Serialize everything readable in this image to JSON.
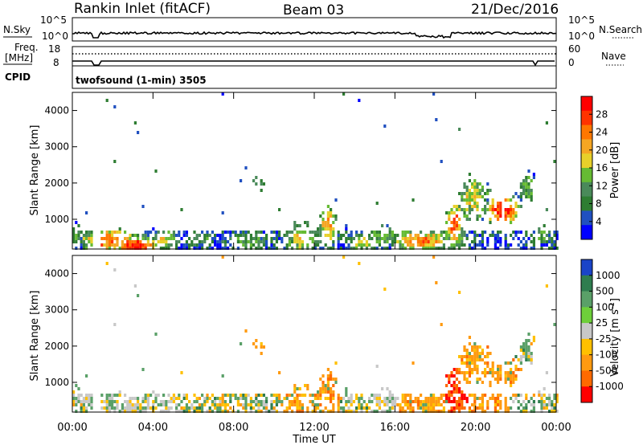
{
  "header": {
    "station": "Rankin Inlet (fitACF)",
    "beam": "Beam 03",
    "date": "21/Dec/2016"
  },
  "top_panels": {
    "nsky_label": "N.Sky",
    "nsky_ticks": [
      "10^5",
      "10^0"
    ],
    "nsearch_label": "N.Search",
    "freq_label_1": "Freq.",
    "freq_label_2": "[MHz]",
    "freq_ticks": [
      "18",
      "8"
    ],
    "nave_ticks": [
      "60",
      "0"
    ],
    "nave_label": "Nave",
    "cpid_label": "CPID",
    "cpid_text": "twofsound (1-min) 3505"
  },
  "colors": {
    "power_scale": [
      "#0000ff",
      "#2050c0",
      "#2e7d32",
      "#4a8a5a",
      "#66bb33",
      "#e8d02a",
      "#f5a623",
      "#ff7700",
      "#ff3300",
      "#ff0000"
    ],
    "velocity_scale": [
      "#1a44c8",
      "#2f7d4f",
      "#5aa068",
      "#6ecf3a",
      "#c8c8c8",
      "#ffc000",
      "#ff9a10",
      "#ff6a00",
      "#ff0000"
    ]
  },
  "chart_data": [
    {
      "type": "heatmap",
      "name": "power",
      "xlabel": "Time UT",
      "ylabel": "Slant Range [km]",
      "x_ticks": [
        "00:00",
        "04:00",
        "08:00",
        "12:00",
        "16:00",
        "20:00",
        "00:00"
      ],
      "y_ticks": [
        "1000",
        "2000",
        "3000",
        "4000"
      ],
      "ylim": [
        180,
        4500
      ],
      "colorbar_label": "Power [dB]",
      "colorbar_ticks": [
        "4",
        "8",
        "12",
        "16",
        "20",
        "24",
        "28"
      ]
    },
    {
      "type": "heatmap",
      "name": "velocity",
      "xlabel": "Time UT",
      "ylabel": "Slant Range [km]",
      "x_ticks": [
        "00:00",
        "04:00",
        "08:00",
        "12:00",
        "16:00",
        "20:00",
        "00:00"
      ],
      "y_ticks": [
        "1000",
        "2000",
        "3000",
        "4000"
      ],
      "ylim": [
        180,
        4500
      ],
      "colorbar_label": "Velocity [m s^-1]",
      "colorbar_ticks": [
        "1000",
        "500",
        "100",
        "25",
        "-25",
        "-100",
        "-500",
        "-1000"
      ]
    }
  ]
}
